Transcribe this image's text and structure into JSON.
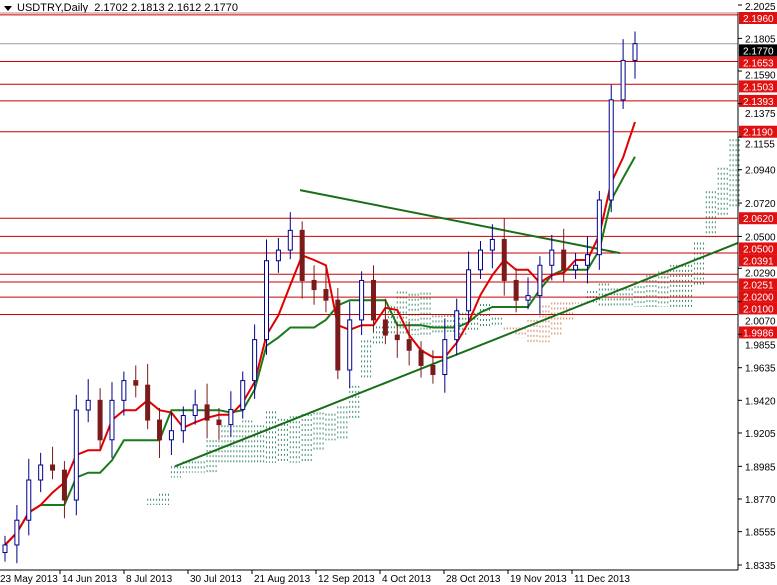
{
  "header": {
    "symbol": "USDTRY,Daily",
    "ohlc": "2.1702 2.1813 2.1612 2.1770"
  },
  "colors": {
    "bull": "#00008b",
    "bear": "#7a1a1a",
    "tenkan": "#e00000",
    "kijun": "#1a7a1a",
    "level_line": "#cc0000",
    "trendline": "#1a6e1a",
    "cloud": "#3a8a6a",
    "cloud_bear": "#d08060"
  },
  "chart_data": {
    "type": "candlestick",
    "symbol": "USDTRY",
    "timeframe": "Daily",
    "ylim": [
      1.8335,
      2.2025
    ],
    "y_ticks": [
      "2.2025",
      "2.1805",
      "2.1590",
      "2.1375",
      "2.1155",
      "2.0940",
      "2.0720",
      "2.0500",
      "2.0290",
      "2.0070",
      "1.9855",
      "1.9635",
      "1.9420",
      "1.9205",
      "1.8985",
      "1.8770",
      "1.8555",
      "1.8335"
    ],
    "x_labels": [
      "23 May 2013",
      "14 Jun 2013",
      "8 Jul 2013",
      "30 Jul 2013",
      "21 Aug 2013",
      "12 Sep 2013",
      "4 Oct 2013",
      "28 Oct 2013",
      "19 Nov 2013",
      "11 Dec 2013"
    ],
    "closes": [
      1.8467,
      1.863,
      1.8895,
      1.8994,
      1.896,
      1.8763,
      1.9356,
      1.942,
      1.916,
      1.942,
      1.955,
      1.952,
      1.929,
      1.916,
      1.922,
      1.932,
      1.939,
      1.929,
      1.926,
      1.936,
      1.955,
      1.982,
      2.034,
      2.041,
      2.054,
      2.021,
      2.015,
      2.008,
      1.962,
      1.995,
      2.021,
      1.995,
      1.985,
      1.982,
      1.975,
      1.965,
      1.959,
      1.982,
      2.001,
      2.028,
      2.041,
      2.048,
      2.021,
      2.008,
      2.011,
      2.031,
      2.041,
      2.028,
      2.031,
      2.038,
      2.074,
      2.14,
      2.166,
      2.177
    ],
    "current_price": "2.1770",
    "levels": [
      "2.1960",
      "2.1653",
      "2.1503",
      "2.1393",
      "2.1190",
      "2.0620",
      "2.0500",
      "2.0391",
      "2.0251",
      "2.0200",
      "2.0100",
      "1.9986"
    ],
    "trendlines": [
      {
        "from": [
          "21 Aug 2013",
          2.0805
        ],
        "to": [
          "11 Dec 2013+",
          2.039
        ]
      },
      {
        "from": [
          "8 Jul 2013+",
          1.8985
        ],
        "to": [
          "end",
          2.0457
        ]
      }
    ]
  }
}
